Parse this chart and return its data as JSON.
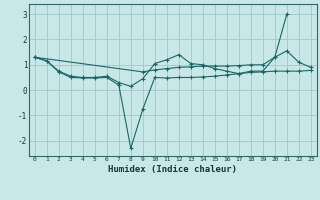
{
  "title": "",
  "xlabel": "Humidex (Indice chaleur)",
  "bg_color": "#c8e8e8",
  "grid_color": "#a0c8c8",
  "line_color": "#1a6666",
  "xlim": [
    -0.5,
    23.5
  ],
  "ylim": [
    -2.6,
    3.4
  ],
  "xticks": [
    0,
    1,
    2,
    3,
    4,
    5,
    6,
    7,
    8,
    9,
    10,
    11,
    12,
    13,
    14,
    15,
    16,
    17,
    18,
    19,
    20,
    21,
    22,
    23
  ],
  "yticks": [
    -2,
    -1,
    0,
    1,
    2,
    3
  ],
  "line1_x": [
    0,
    1,
    2,
    3,
    4,
    5,
    6,
    7,
    8,
    9,
    10,
    11,
    12,
    13,
    14,
    15,
    16,
    17,
    18,
    19,
    20,
    21,
    22,
    23
  ],
  "line1_y": [
    1.3,
    1.15,
    0.72,
    0.5,
    0.48,
    0.48,
    0.5,
    0.2,
    -2.3,
    -0.75,
    0.5,
    0.48,
    0.5,
    0.5,
    0.52,
    0.55,
    0.6,
    0.65,
    0.7,
    0.72,
    0.75,
    0.75,
    0.75,
    0.78
  ],
  "line2_x": [
    0,
    1,
    2,
    3,
    4,
    5,
    6,
    7,
    8,
    9,
    10,
    11,
    12,
    13,
    14,
    15,
    16,
    17,
    18,
    19,
    20,
    21,
    22,
    23
  ],
  "line2_y": [
    1.3,
    1.15,
    0.75,
    0.55,
    0.5,
    0.5,
    0.55,
    0.3,
    0.15,
    0.45,
    1.05,
    1.2,
    1.4,
    1.05,
    1.0,
    0.85,
    0.75,
    0.65,
    0.75,
    0.75,
    1.3,
    1.55,
    1.1,
    0.9
  ],
  "line3_x": [
    0,
    9,
    10,
    11,
    12,
    13,
    14,
    15,
    16,
    17,
    18,
    19,
    20,
    21
  ],
  "line3_y": [
    1.3,
    0.72,
    0.8,
    0.85,
    0.9,
    0.92,
    0.95,
    0.95,
    0.95,
    0.97,
    1.0,
    1.0,
    1.3,
    3.0
  ]
}
